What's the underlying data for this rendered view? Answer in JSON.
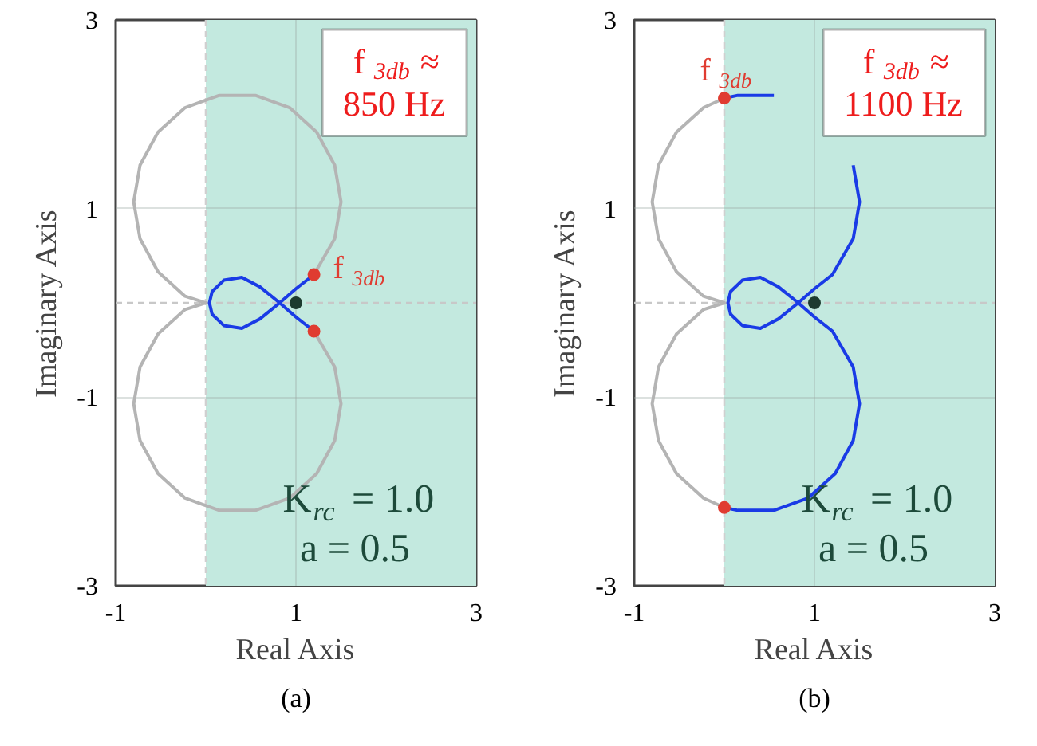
{
  "chart_data": [
    {
      "type": "line",
      "xlabel": "Real Axis",
      "ylabel": "Imaginary Axis",
      "xlim": [
        -1,
        3
      ],
      "ylim": [
        -3,
        3
      ],
      "xticks": [
        -1,
        1,
        3
      ],
      "yticks": [
        -3,
        -1,
        1,
        3
      ],
      "grid": true,
      "bands": [
        {
          "axis": "x",
          "from": 0,
          "to": 3,
          "color": "#c3e9df"
        }
      ],
      "ref_lines": [
        {
          "axis": "x",
          "value": 0,
          "color": "#d0d0d0",
          "line_style": "dashed"
        },
        {
          "axis": "y",
          "value": 0,
          "color": "#c8c8c8",
          "line_style": "dashed"
        }
      ],
      "series": [
        {
          "color": "#b4b4b4",
          "x": [
            1.2,
            1.43,
            1.5,
            1.43,
            1.23,
            0.93,
            0.55,
            0.15,
            -0.23,
            -0.53,
            -0.73,
            -0.8,
            -0.73,
            -0.53,
            -0.23,
            0,
            -0.23,
            -0.53,
            -0.73,
            -0.8,
            -0.73,
            -0.53,
            -0.23,
            0.15,
            0.55,
            0.93,
            1.23,
            1.43,
            1.5,
            1.43,
            1.2
          ],
          "values": [
            0.3,
            0.68,
            1.07,
            1.46,
            1.81,
            2.07,
            2.2,
            2.2,
            2.07,
            1.81,
            1.46,
            1.07,
            0.68,
            0.33,
            0.07,
            0,
            -0.07,
            -0.33,
            -0.68,
            -1.07,
            -1.46,
            -1.81,
            -2.07,
            -2.2,
            -2.2,
            -2.07,
            -1.81,
            -1.46,
            -1.07,
            -0.68,
            -0.3
          ]
        },
        {
          "color": "#1a3be6",
          "x": [
            1.2,
            1.0,
            0.82,
            0.6,
            0.4,
            0.2,
            0.07,
            0.04,
            0.07,
            0.2,
            0.4,
            0.6,
            0.82,
            1.0,
            1.2
          ],
          "values": [
            0.3,
            0.15,
            0,
            -0.17,
            -0.27,
            -0.24,
            -0.12,
            0,
            0.12,
            0.24,
            0.27,
            0.17,
            0,
            -0.15,
            -0.3
          ]
        },
        {
          "type": "scatter",
          "marker": "circle",
          "color": "#e03c31",
          "x": [
            1.2,
            1.2
          ],
          "values": [
            0.3,
            -0.3
          ]
        },
        {
          "type": "scatter",
          "marker": "circle",
          "color": "#1d3b30",
          "x": [
            1
          ],
          "values": [
            0
          ]
        }
      ],
      "annotations": [
        "f$_{3db}$ ≈\n850 Hz",
        "K$_{rc}$ = 1.0",
        "a = 0.5",
        "(a)",
        {
          "text": "f$_{3db}$",
          "x": 1.2,
          "y": 0.3
        }
      ]
    },
    {
      "type": "line",
      "xlabel": "Real Axis",
      "ylabel": "Imaginary Axis",
      "xlim": [
        -1,
        3
      ],
      "ylim": [
        -3,
        3
      ],
      "xticks": [
        -1,
        1,
        3
      ],
      "yticks": [
        -3,
        -1,
        1,
        3
      ],
      "grid": true,
      "bands": [
        {
          "axis": "x",
          "from": 0,
          "to": 3,
          "color": "#c3e9df"
        }
      ],
      "ref_lines": [
        {
          "axis": "x",
          "value": 0,
          "color": "#d0d0d0",
          "line_style": "dashed"
        },
        {
          "axis": "y",
          "value": 0,
          "color": "#c8c8c8",
          "line_style": "dashed"
        }
      ],
      "series": [
        {
          "color": "#b4b4b4",
          "x": [
            0,
            -0.23,
            -0.53,
            -0.73,
            -0.8,
            -0.73,
            -0.53,
            -0.23,
            0,
            -0.23,
            -0.53,
            -0.73,
            -0.8,
            -0.73,
            -0.53,
            -0.23,
            0
          ],
          "values": [
            2.17,
            2.07,
            1.81,
            1.46,
            1.07,
            0.68,
            0.33,
            0.07,
            0,
            -0.07,
            -0.33,
            -0.68,
            -1.07,
            -1.46,
            -1.81,
            -2.07,
            -2.17
          ]
        },
        {
          "color": "#1a3be6",
          "x": [
            0,
            0.15,
            0.55,
            0.93,
            1.23,
            1.43,
            1.5,
            1.43,
            1.2,
            1.0,
            0.82,
            0.6,
            0.4,
            0.2,
            0.07,
            0.04,
            0.07,
            0.2,
            0.4,
            0.6,
            0.82,
            1.0,
            1.2,
            1.43,
            1.5,
            1.43,
            1.23,
            0.93,
            0.55,
            0.15,
            0
          ],
          "values": [
            2.17,
            2.2,
            2.2,
            null,
            null,
            1.46,
            1.07,
            0.68,
            0.3,
            0.15,
            0,
            -0.17,
            -0.27,
            -0.24,
            -0.12,
            0,
            0.12,
            0.24,
            0.27,
            0.17,
            0,
            -0.15,
            -0.3,
            -0.68,
            -1.07,
            -1.46,
            -1.81,
            -2.07,
            -2.2,
            -2.2,
            -2.17
          ]
        },
        {
          "type": "scatter",
          "marker": "circle",
          "color": "#e03c31",
          "x": [
            0,
            0
          ],
          "values": [
            2.17,
            -2.17
          ]
        },
        {
          "type": "scatter",
          "marker": "circle",
          "color": "#1d3b30",
          "x": [
            1
          ],
          "values": [
            0
          ]
        }
      ],
      "annotations": [
        "f$_{3db}$ ≈\n1100 Hz",
        "K$_{rc}$ = 1.0",
        "a = 0.5",
        "(b)",
        {
          "text": "f$_{3db}$",
          "x": 0,
          "y": 2.17
        }
      ]
    }
  ]
}
